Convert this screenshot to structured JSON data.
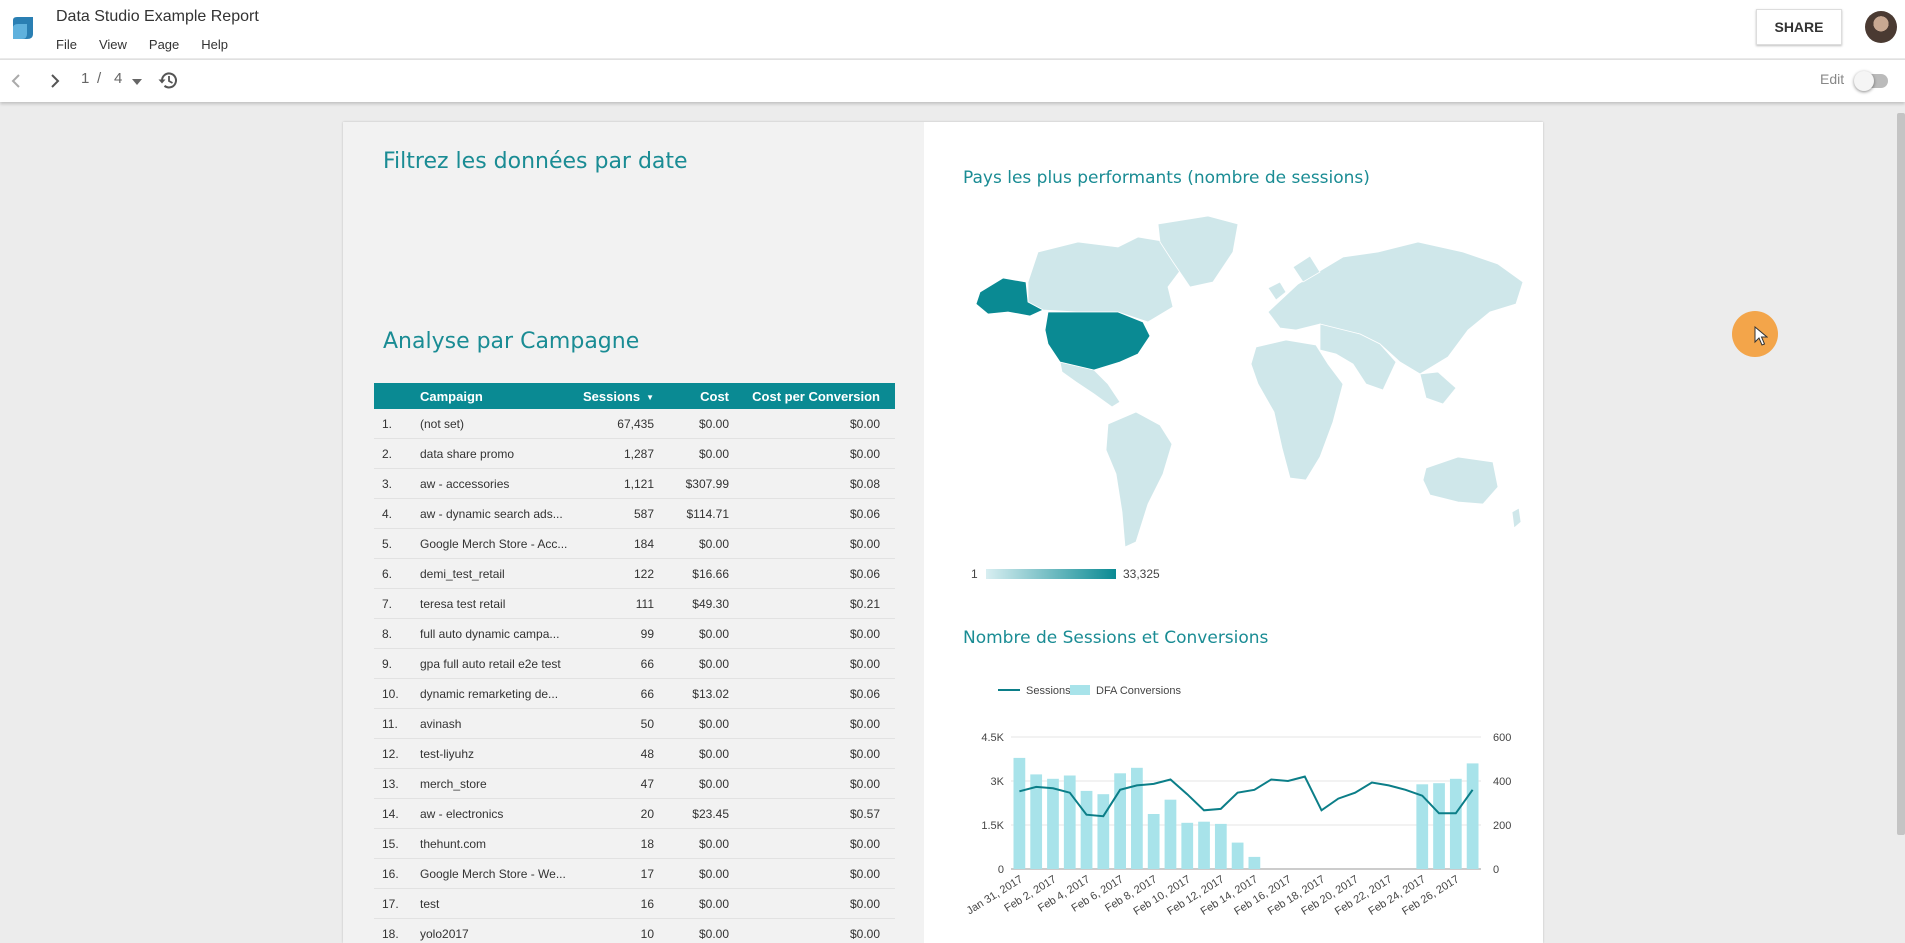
{
  "app": {
    "title": "Data Studio Example Report",
    "menu": [
      "File",
      "View",
      "Page",
      "Help"
    ],
    "share_label": "SHARE"
  },
  "toolbar": {
    "page_current": "1",
    "page_separator": "/",
    "page_total": "4",
    "edit_label": "Edit"
  },
  "left": {
    "date_title": "Filtrez les données par date",
    "campaign_title": "Analyse par Campagne",
    "table": {
      "headers": [
        "Campaign",
        "Sessions",
        "Cost",
        "Cost per Conversion"
      ],
      "rows": [
        [
          "1.",
          "(not set)",
          "67,435",
          "$0.00",
          "$0.00"
        ],
        [
          "2.",
          "data share promo",
          "1,287",
          "$0.00",
          "$0.00"
        ],
        [
          "3.",
          " aw - accessories",
          "1,121",
          "$307.99",
          "$0.08"
        ],
        [
          "4.",
          " aw - dynamic search ads...",
          "587",
          "$114.71",
          "$0.06"
        ],
        [
          "5.",
          "Google Merch Store - Acc...",
          "184",
          "$0.00",
          "$0.00"
        ],
        [
          "6.",
          "demi_test_retail",
          "122",
          "$16.66",
          "$0.06"
        ],
        [
          "7.",
          "teresa test retail",
          "111",
          "$49.30",
          "$0.21"
        ],
        [
          "8.",
          "full auto dynamic campa...",
          "99",
          "$0.00",
          "$0.00"
        ],
        [
          "9.",
          "gpa full auto retail e2e test",
          "66",
          "$0.00",
          "$0.00"
        ],
        [
          "10.",
          "dynamic remarketing de...",
          "66",
          "$13.02",
          "$0.06"
        ],
        [
          "11.",
          "avinash",
          "50",
          "$0.00",
          "$0.00"
        ],
        [
          "12.",
          "test-liyuhz",
          "48",
          "$0.00",
          "$0.00"
        ],
        [
          "13.",
          "merch_store",
          "47",
          "$0.00",
          "$0.00"
        ],
        [
          "14.",
          " aw - electronics",
          "20",
          "$23.45",
          "$0.57"
        ],
        [
          "15.",
          "thehunt.com",
          "18",
          "$0.00",
          "$0.00"
        ],
        [
          "16.",
          "Google Merch Store - We...",
          "17",
          "$0.00",
          "$0.00"
        ],
        [
          "17.",
          "test",
          "16",
          "$0.00",
          "$0.00"
        ],
        [
          "18.",
          "yolo2017",
          "10",
          "$0.00",
          "$0.00"
        ]
      ]
    }
  },
  "right": {
    "map_title": "Pays les plus performants (nombre de sessions)",
    "legend_min": "1",
    "legend_max": "33,325",
    "chart_title": "Nombre de Sessions et Conversions"
  },
  "colors": {
    "teal": "#0a8a93",
    "teal_light": "#cfe7ea",
    "bar": "#a8e3ea",
    "line": "#0b7e88"
  },
  "chart_data": {
    "type": "bar",
    "title": "Nombre de Sessions et Conversions",
    "x": [
      "Jan 31, 2017",
      "Feb 1, 2017",
      "Feb 2, 2017",
      "Feb 3, 2017",
      "Feb 4, 2017",
      "Feb 5, 2017",
      "Feb 6, 2017",
      "Feb 7, 2017",
      "Feb 8, 2017",
      "Feb 9, 2017",
      "Feb 10, 2017",
      "Feb 11, 2017",
      "Feb 12, 2017",
      "Feb 13, 2017",
      "Feb 14, 2017",
      "Feb 15, 2017",
      "Feb 16, 2017",
      "Feb 17, 2017",
      "Feb 18, 2017",
      "Feb 19, 2017",
      "Feb 20, 2017",
      "Feb 21, 2017",
      "Feb 22, 2017",
      "Feb 23, 2017",
      "Feb 24, 2017",
      "Feb 25, 2017",
      "Feb 26, 2017",
      "Feb 27, 2017"
    ],
    "tick_labels": [
      "Jan 31, 2017",
      "Feb 2, 2017",
      "Feb 4, 2017",
      "Feb 6, 2017",
      "Feb 8, 2017",
      "Feb 10, 2017",
      "Feb 12, 2017",
      "Feb 14, 2017",
      "Feb 16, 2017",
      "Feb 18, 2017",
      "Feb 20, 2017",
      "Feb 22, 2017",
      "Feb 24, 2017",
      "Feb 26, 2017"
    ],
    "series": [
      {
        "name": "Sessions",
        "kind": "line",
        "axis": "left",
        "values": [
          2650,
          2800,
          2750,
          2600,
          1850,
          1800,
          2700,
          2850,
          2900,
          3050,
          2550,
          2000,
          2050,
          2600,
          2700,
          3050,
          3000,
          3150,
          2000,
          2400,
          2600,
          2950,
          2850,
          2700,
          2500,
          1900,
          1900,
          2700
        ]
      },
      {
        "name": "DFA Conversions",
        "kind": "bar",
        "axis": "right",
        "values": [
          505,
          430,
          410,
          425,
          355,
          340,
          435,
          460,
          250,
          315,
          210,
          215,
          205,
          120,
          55,
          0,
          0,
          0,
          0,
          0,
          0,
          0,
          0,
          0,
          385,
          390,
          410,
          480
        ]
      }
    ],
    "ylim_left": [
      0,
      4500
    ],
    "yticks_left": [
      "0",
      "1.5K",
      "3K",
      "4.5K"
    ],
    "ylim_right": [
      0,
      600
    ],
    "yticks_right": [
      "0",
      "200",
      "400",
      "600"
    ],
    "legend": "top-left"
  }
}
